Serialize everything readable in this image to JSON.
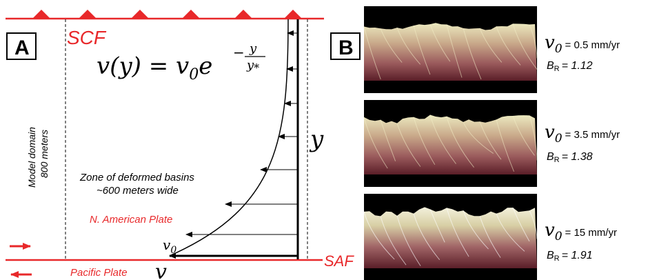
{
  "panel_a": {
    "label": "A",
    "scf_label": "SCF",
    "saf_label": "SAF",
    "equation": {
      "lhs": "v(y) = v",
      "lhs_sub": "0",
      "base": "e",
      "exp_neg": "−",
      "exp_num": "y",
      "exp_den": "y",
      "exp_den_sub": "*"
    },
    "domain_label_line1": "Model domain",
    "domain_label_line2": "800 meters",
    "zone_line1": "Zone of deformed basins",
    "zone_line2": "~600 meters wide",
    "na_plate": "N. American Plate",
    "pacific_plate": "Pacific Plate",
    "v0_label": "v",
    "v0_sub": "0",
    "v_axis_label": "v",
    "y_axis_label": "y"
  },
  "panel_b": {
    "label": "B",
    "images": [
      {
        "v_symbol": "v",
        "v_sub": "0",
        "v_value": "= 0.5 mm/yr",
        "br_symbol": "B",
        "br_sub": "R",
        "br_value": "= 1.12",
        "relief": 0.35
      },
      {
        "v_symbol": "v",
        "v_sub": "0",
        "v_value": "= 3.5 mm/yr",
        "br_symbol": "B",
        "br_sub": "R",
        "br_value": "= 1.38",
        "relief": 0.6
      },
      {
        "v_symbol": "v",
        "v_sub": "0",
        "v_value": "= 15 mm/yr",
        "br_symbol": "B",
        "br_sub": "R",
        "br_value": "= 1.91",
        "relief": 0.9
      }
    ]
  },
  "colors": {
    "fault_red": "#e8282a",
    "terrain_light": "#e8e4b8",
    "terrain_dark": "#5a1e28"
  }
}
